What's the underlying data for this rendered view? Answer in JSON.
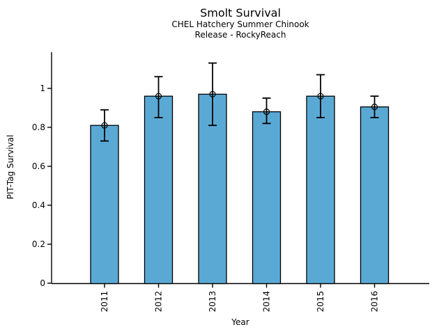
{
  "header": {
    "title": "Smolt Survival",
    "subtitle1": "CHEL Hatchery Summer Chinook",
    "subtitle2": "Release - RockyReach"
  },
  "chart_data": {
    "type": "bar",
    "title": "Smolt Survival",
    "subtitle": [
      "CHEL Hatchery Summer Chinook",
      "Release - RockyReach"
    ],
    "xlabel": "Year",
    "ylabel": "PIT-Tag Survival",
    "categories": [
      "2011",
      "2012",
      "2013",
      "2014",
      "2015",
      "2016"
    ],
    "values": [
      0.81,
      0.96,
      0.97,
      0.88,
      0.96,
      0.905
    ],
    "error_low": [
      0.73,
      0.85,
      0.81,
      0.82,
      0.85,
      0.85
    ],
    "error_high": [
      0.89,
      1.06,
      1.13,
      0.95,
      1.07,
      0.96
    ],
    "yticks": [
      0,
      0.2,
      0.4,
      0.6,
      0.8,
      1
    ],
    "ytick_labels": [
      "0",
      "0.2",
      "0.4",
      "0.6",
      "0.8",
      "1"
    ],
    "ylim": [
      0,
      1.19
    ],
    "grid": false,
    "legend": null,
    "marker": "circle-plus",
    "colors": {
      "bar_fill": "#5AA9D5",
      "bar_edge": "#000000",
      "error_bar": "#000000",
      "axis": "#000000",
      "text": "#000000",
      "background": "#ffffff"
    }
  }
}
